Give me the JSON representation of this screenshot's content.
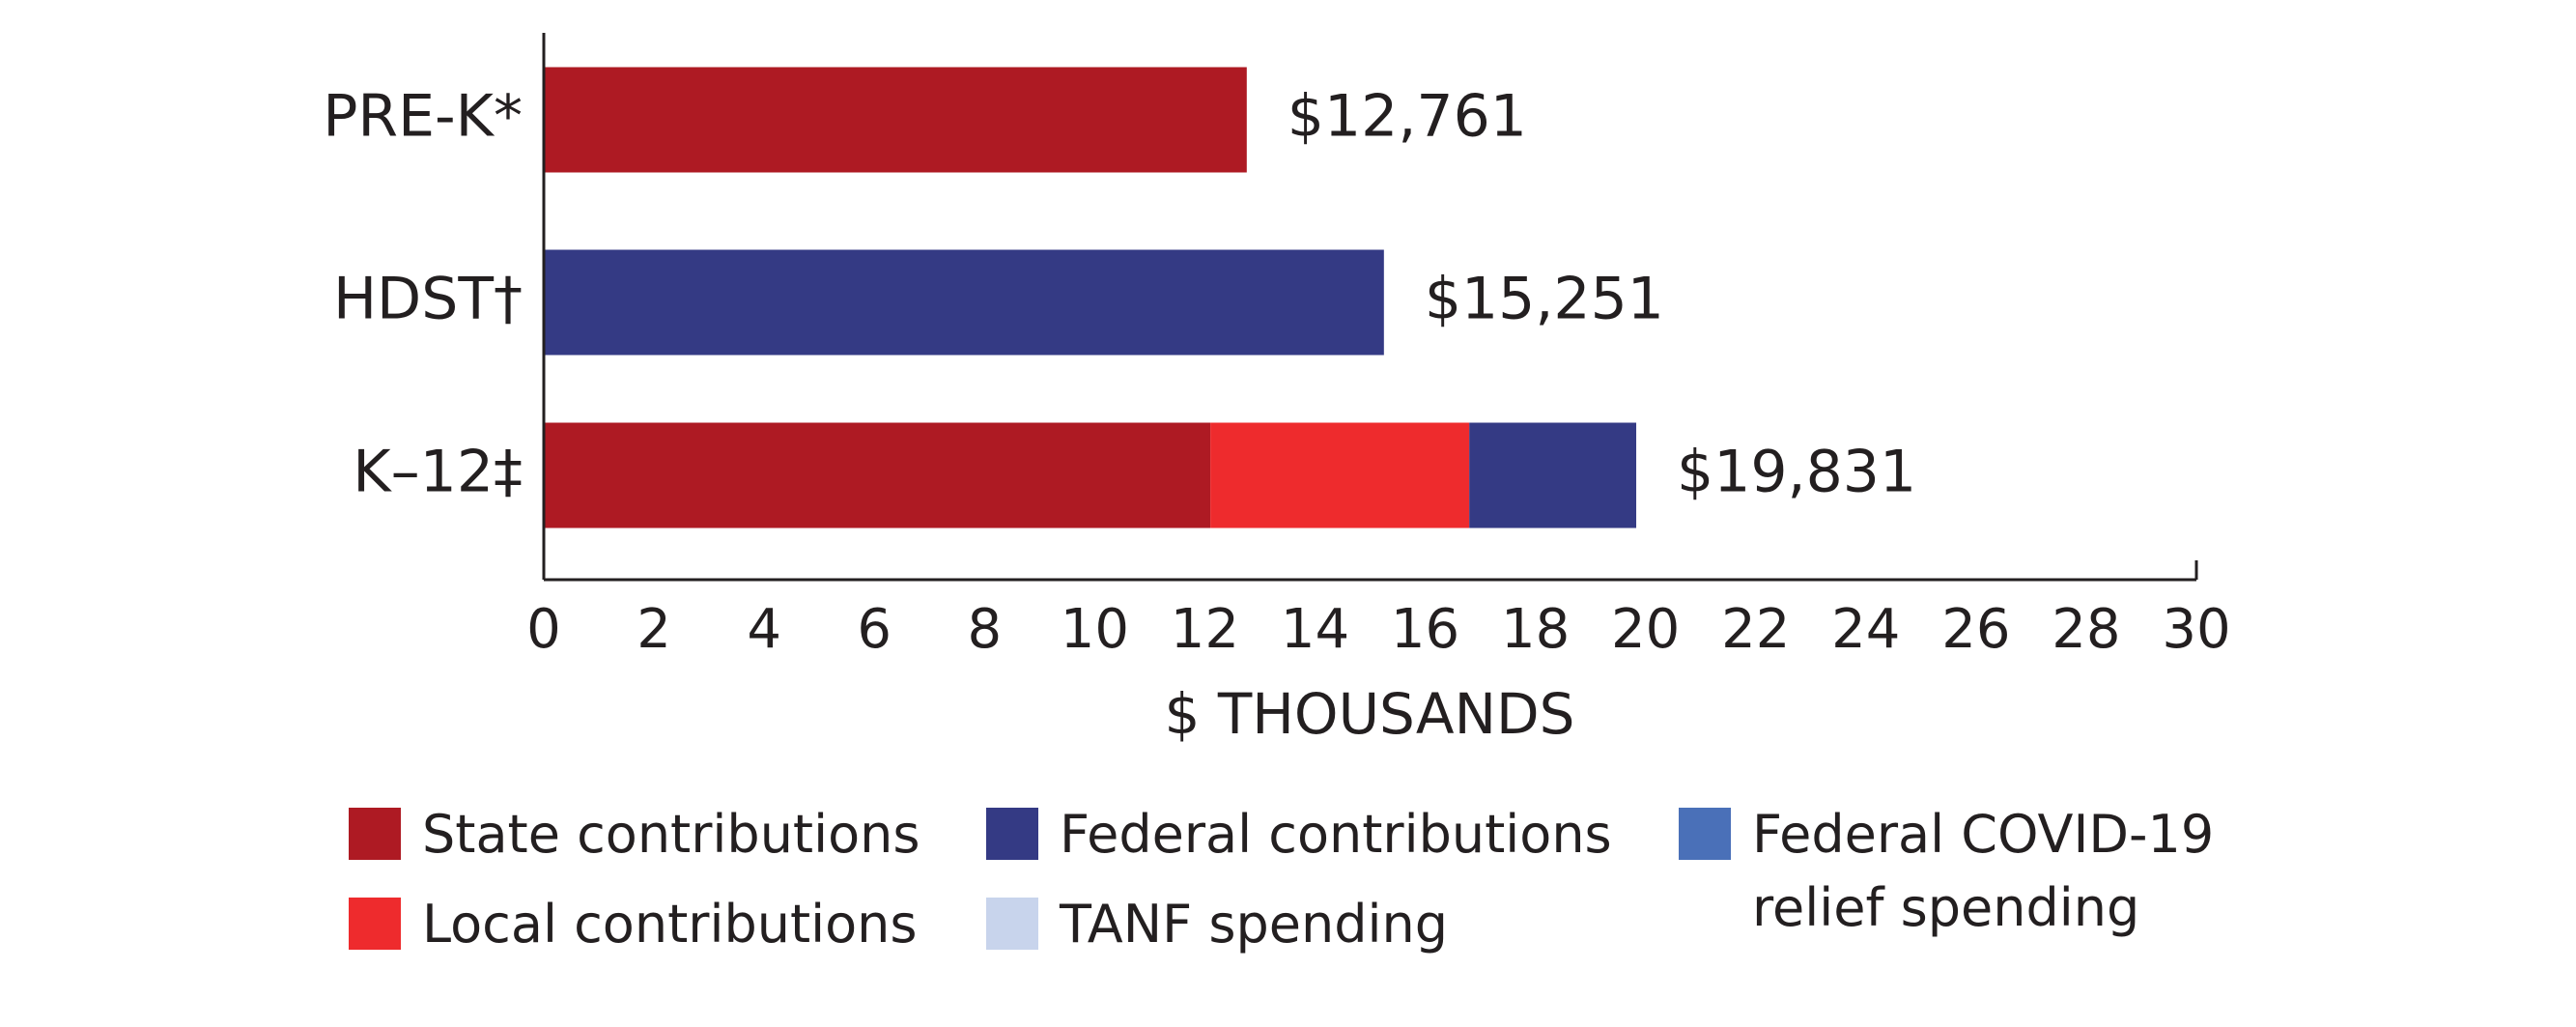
{
  "chart_data": {
    "type": "stacked-bar-horizontal",
    "categories": [
      "PRE-K*",
      "HDST†",
      "K–12‡"
    ],
    "series": [
      {
        "name": "State contributions",
        "color": "#ae1a23",
        "values": [
          12.761,
          0,
          12.1
        ]
      },
      {
        "name": "Local contributions",
        "color": "#ee2b2d",
        "values": [
          0,
          0,
          4.7
        ]
      },
      {
        "name": "Federal contributions",
        "color": "#343a84",
        "values": [
          0,
          15.251,
          3.031
        ]
      },
      {
        "name": "TANF spending",
        "color": "#c8d4ec",
        "values": [
          0,
          0,
          0
        ]
      },
      {
        "name": "Federal COVID-19 relief spending",
        "color": "#4a70b8",
        "values": [
          0,
          0,
          0
        ]
      }
    ],
    "totals": {
      "values": [
        12.761,
        15.251,
        19.831
      ],
      "value_labels": [
        "$12,761",
        "$15,251",
        "$19,831"
      ]
    },
    "xlabel": "$ THOUSANDS",
    "xlim": [
      0,
      30
    ],
    "xticks": [
      0,
      2,
      4,
      6,
      8,
      10,
      12,
      14,
      16,
      18,
      20,
      22,
      24,
      26,
      28,
      30
    ],
    "grid": false
  }
}
